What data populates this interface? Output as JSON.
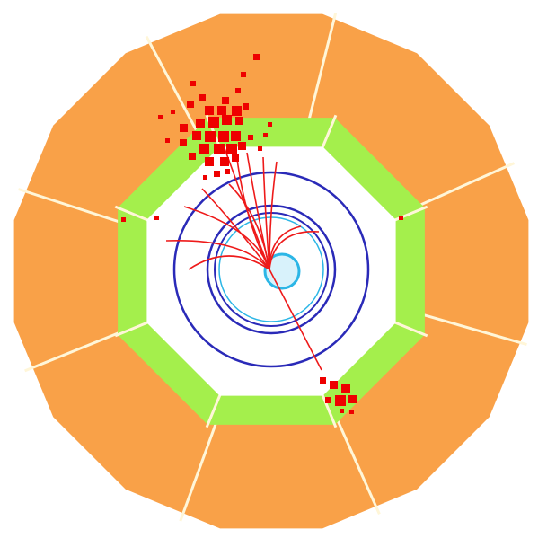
{
  "colors": {
    "background": "#ffffff",
    "outer_calorimeter": "#f9a148",
    "segment_divider": "#fff6d8",
    "inner_calorimeter": "#a4ef4c",
    "tracker_region": "#ffffff",
    "tracker_rings": "#2a2ab8",
    "beam_pipe_outer": "#2bb6e6",
    "beam_pipe_fill": "#d8f2fb",
    "tracks": "#ee1a1a",
    "energy_deposits": "#ee0000"
  },
  "icons": [
    "event-display-diagram"
  ]
}
